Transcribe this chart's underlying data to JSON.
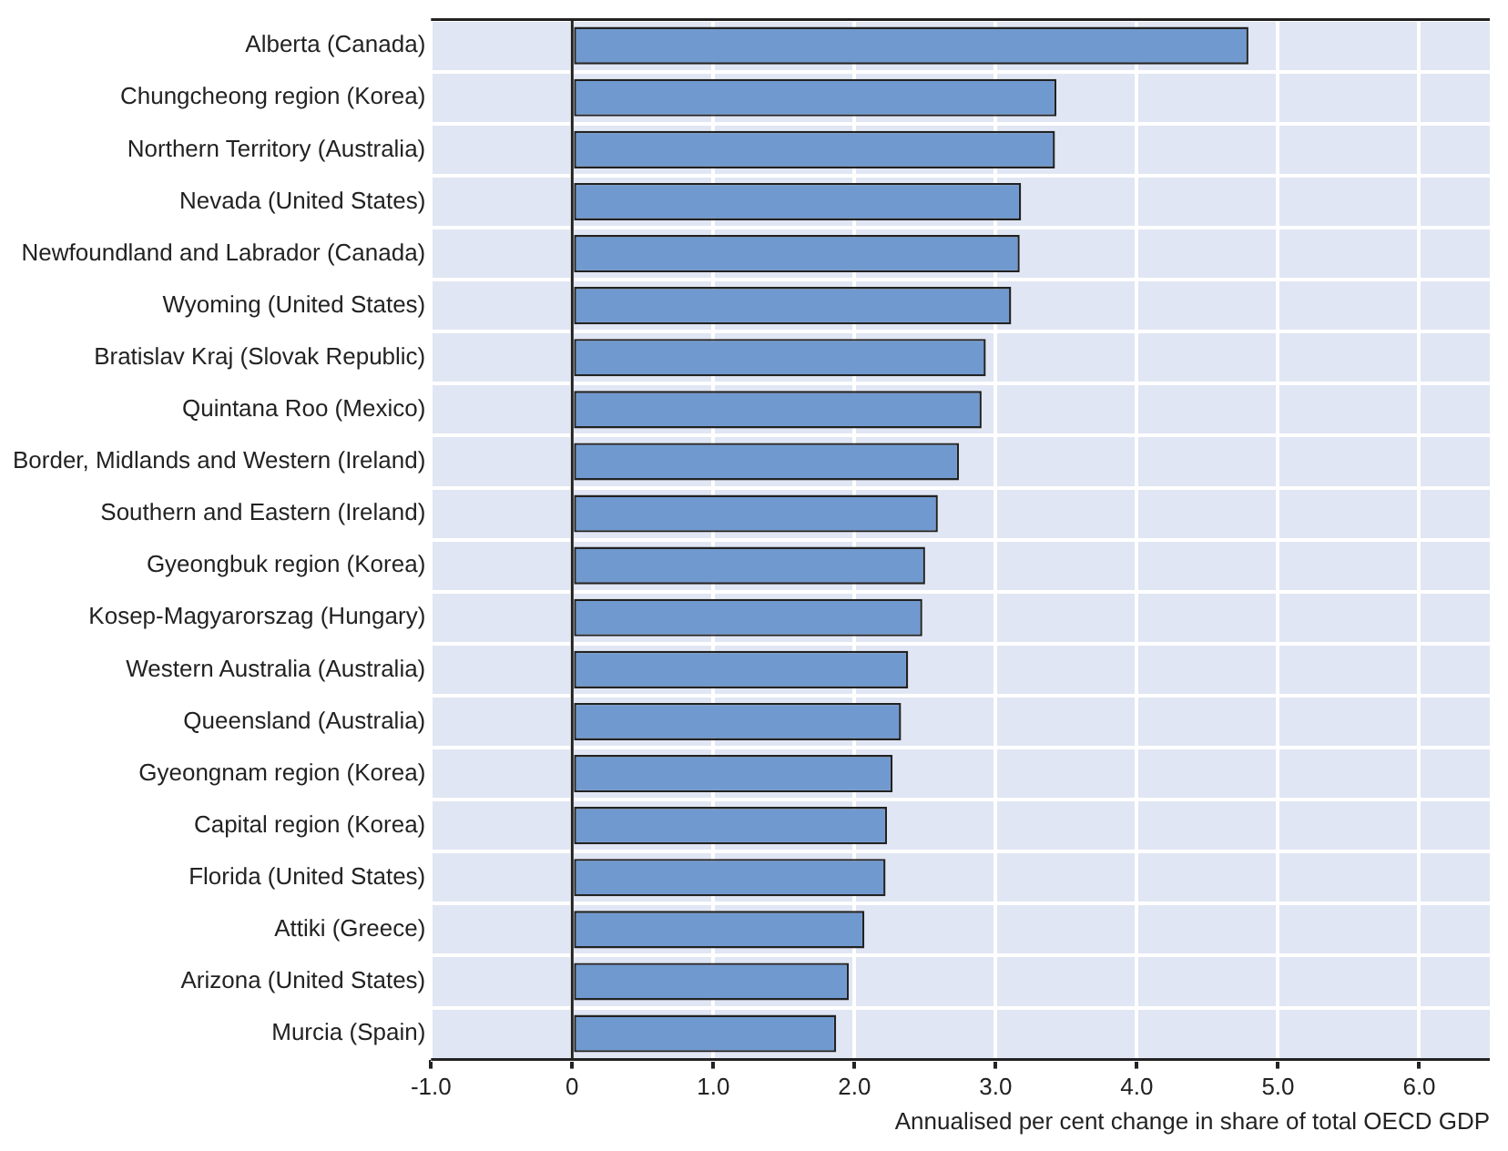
{
  "chart_data": {
    "type": "bar",
    "orientation": "horizontal",
    "xlabel": "Annualised per cent change in share of total OECD GDP",
    "categories": [
      "Alberta (Canada)",
      "Chungcheong region (Korea)",
      "Northern Territory (Australia)",
      "Nevada (United States)",
      "Newfoundland and Labrador (Canada)",
      "Wyoming (United States)",
      "Bratislav Kraj (Slovak Republic)",
      "Quintana Roo (Mexico)",
      "Border, Midlands and Western (Ireland)",
      "Southern and Eastern (Ireland)",
      "Gyeongbuk region (Korea)",
      "Kosep-Magyarorszag (Hungary)",
      "Western Australia (Australia)",
      "Queensland (Australia)",
      "Gyeongnam region (Korea)",
      "Capital region (Korea)",
      "Florida (United States)",
      "Attiki (Greece)",
      "Arizona (United States)",
      "Murcia (Spain)"
    ],
    "values": [
      4.79,
      3.43,
      3.42,
      3.18,
      3.17,
      3.11,
      2.93,
      2.9,
      2.74,
      2.59,
      2.5,
      2.48,
      2.38,
      2.33,
      2.27,
      2.23,
      2.22,
      2.07,
      1.96,
      1.87
    ],
    "color": "#7099cf",
    "xlim": [
      -1,
      6.5
    ],
    "xticks": [
      {
        "value": -1,
        "label": "-1.0"
      },
      {
        "value": 0,
        "label": "0"
      },
      {
        "value": 1,
        "label": "1.0"
      },
      {
        "value": 2,
        "label": "2.0"
      },
      {
        "value": 3,
        "label": "3.0"
      },
      {
        "value": 4,
        "label": "4.0"
      },
      {
        "value": 5,
        "label": "5.0"
      },
      {
        "value": 6,
        "label": "6.0"
      }
    ],
    "grid": true
  }
}
